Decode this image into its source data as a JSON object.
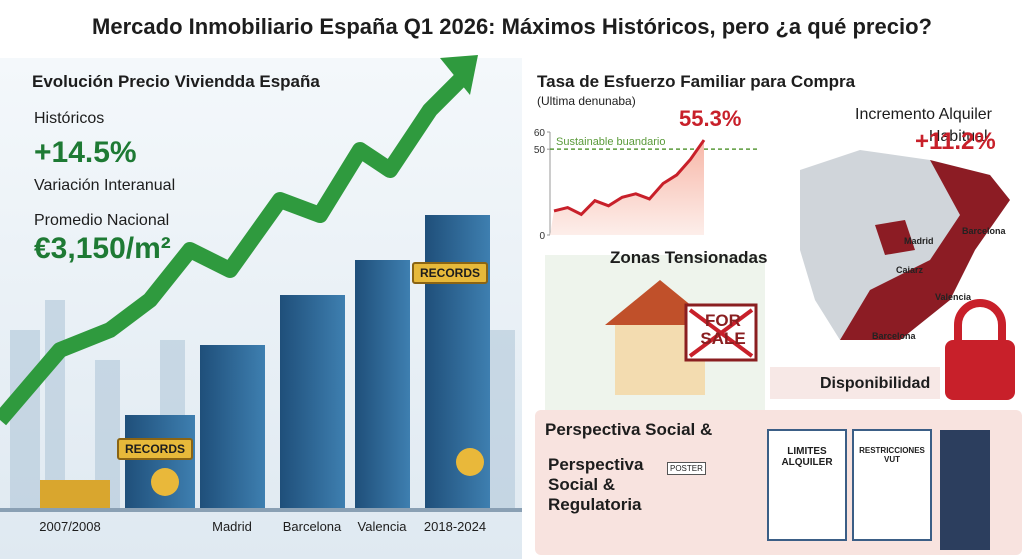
{
  "header": {
    "title": "Mercado Inmobiliario España Q1 2026: Máximos Históricos, pero ¿a qué precio?"
  },
  "price_panel": {
    "title": "Evolución Precio Viviendda España",
    "stats": [
      {
        "label": "Históricos",
        "value": "+14.5%",
        "caption": "Variación Interanual"
      },
      {
        "label": "Promedio Nacional",
        "value": "€3,150/m²"
      }
    ],
    "badges": [
      "RECORDS",
      "RECORDS"
    ],
    "categories": [
      "2007/2008",
      "Madrid",
      "Barcelona",
      "Valencia",
      "2018-2024"
    ]
  },
  "chart_data": {
    "type": "line",
    "title": "Tasa de Esfuerzo Familiar para Compra",
    "subtitle": "(Ultima denunaba)",
    "values": [
      14,
      16,
      12,
      20,
      17,
      22,
      24,
      21,
      30,
      35,
      44,
      55.3
    ],
    "color": "#c8202a",
    "ylim": [
      0,
      60
    ],
    "yticks": [
      0,
      50,
      60
    ],
    "threshold": {
      "value": 50,
      "label": "Sustainable buandario",
      "color": "#5a9a3a"
    },
    "annotations": [
      {
        "text": "55.3%",
        "value": 55.3
      }
    ]
  },
  "rent": {
    "label": "Incremento Alquiler Habitual:",
    "value": "+11.2%"
  },
  "map": {
    "labels": [
      "Madrid",
      "Barcelona",
      "Caiarz",
      "Valencia",
      "Barcelona"
    ]
  },
  "zones": {
    "title": "Zonas Tensionadas",
    "sign": "FOR SALE",
    "availability": "Disponibilidad"
  },
  "social": {
    "heading": "Perspectiva Social &",
    "title": "Perspectiva Social & Regulatoria",
    "poster": "POSTER",
    "documents": [
      "LIMITES ALQUILER",
      "RESTRICCIONES VUT"
    ]
  }
}
